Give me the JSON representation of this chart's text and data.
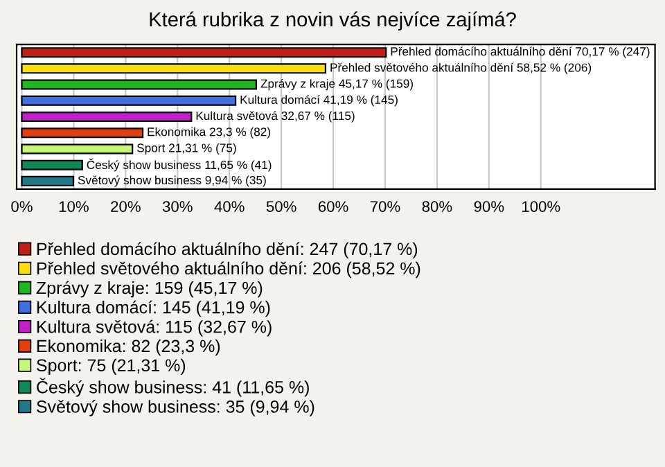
{
  "chart_data": {
    "type": "bar",
    "orientation": "horizontal",
    "title": "Která rubrika z novin vás nejvíce zajímá?",
    "categories": [
      null,
      null,
      null,
      null,
      null,
      null,
      null,
      null,
      null
    ],
    "series": [
      {
        "name": "Přehled domácího aktuálního dění: 247 (70,17 %)",
        "color": "#c02018",
        "values": [
          70.17,
          null,
          null,
          null,
          null,
          null,
          null,
          null,
          null
        ],
        "value_labels": [
          "Přehled domácího aktuálního dění 70,17 % (247)",
          null,
          null,
          null,
          null,
          null,
          null,
          null,
          null
        ]
      },
      {
        "name": "Přehled světového aktuálního dění: 206 (58,52 %)",
        "color": "#f8e010",
        "values": [
          null,
          58.52,
          null,
          null,
          null,
          null,
          null,
          null,
          null
        ],
        "value_labels": [
          null,
          "Přehled světového aktuálního dění 58,52 % (206)",
          null,
          null,
          null,
          null,
          null,
          null,
          null
        ]
      },
      {
        "name": "Zprávy z kraje: 159 (45,17 %)",
        "color": "#20b820",
        "values": [
          null,
          null,
          45.17,
          null,
          null,
          null,
          null,
          null,
          null
        ],
        "value_labels": [
          null,
          null,
          "Zprávy z kraje 45,17 % (159)",
          null,
          null,
          null,
          null,
          null,
          null
        ]
      },
      {
        "name": "Kultura domácí: 145 (41,19 %)",
        "color": "#4070e0",
        "values": [
          null,
          null,
          null,
          41.19,
          null,
          null,
          null,
          null,
          null
        ],
        "value_labels": [
          null,
          null,
          null,
          "Kultura domácí 41,19 % (145)",
          null,
          null,
          null,
          null,
          null
        ]
      },
      {
        "name": "Kultura světová: 115 (32,67 %)",
        "color": "#c020c8",
        "values": [
          null,
          null,
          null,
          null,
          32.67,
          null,
          null,
          null,
          null
        ],
        "value_labels": [
          null,
          null,
          null,
          null,
          "Kultura světová 32,67 % (115)",
          null,
          null,
          null,
          null
        ]
      },
      {
        "name": "Ekonomika: 82 (23,3 %)",
        "color": "#e04010",
        "values": [
          null,
          null,
          null,
          null,
          null,
          23.3,
          null,
          null,
          null
        ],
        "value_labels": [
          null,
          null,
          null,
          null,
          null,
          "Ekonomika 23,3 % (82)",
          null,
          null,
          null
        ]
      },
      {
        "name": "Sport: 75 (21,31 %)",
        "color": "#c8f878",
        "values": [
          null,
          null,
          null,
          null,
          null,
          null,
          21.31,
          null,
          null
        ],
        "value_labels": [
          null,
          null,
          null,
          null,
          null,
          null,
          "Sport 21,31 % (75)",
          null,
          null
        ]
      },
      {
        "name": "Český show business: 41 (11,65 %)",
        "color": "#108858",
        "values": [
          null,
          null,
          null,
          null,
          null,
          null,
          null,
          11.65,
          null
        ],
        "value_labels": [
          null,
          null,
          null,
          null,
          null,
          null,
          null,
          "Český show business 11,65 % (41)",
          null
        ]
      },
      {
        "name": "Světový show business: 35 (9,94 %)",
        "color": "#207888",
        "values": [
          null,
          null,
          null,
          null,
          null,
          null,
          null,
          null,
          9.94
        ],
        "value_labels": [
          null,
          null,
          null,
          null,
          null,
          null,
          null,
          null,
          "Světový show business 9,94 % (35)"
        ]
      }
    ],
    "xlim": [
      -1,
      122
    ],
    "xticks": [
      {
        "value": 0,
        "label": "0%"
      },
      {
        "value": 10,
        "label": "10%"
      },
      {
        "value": 20,
        "label": "20%"
      },
      {
        "value": 30,
        "label": "30%"
      },
      {
        "value": 40,
        "label": "40%"
      },
      {
        "value": 50,
        "label": "50%"
      },
      {
        "value": 60,
        "label": "60%"
      },
      {
        "value": 70,
        "label": "70%"
      },
      {
        "value": 80,
        "label": "80%"
      },
      {
        "value": 90,
        "label": "90%"
      },
      {
        "value": 100,
        "label": "100%"
      }
    ],
    "grid": "x",
    "legend": "bottom"
  }
}
